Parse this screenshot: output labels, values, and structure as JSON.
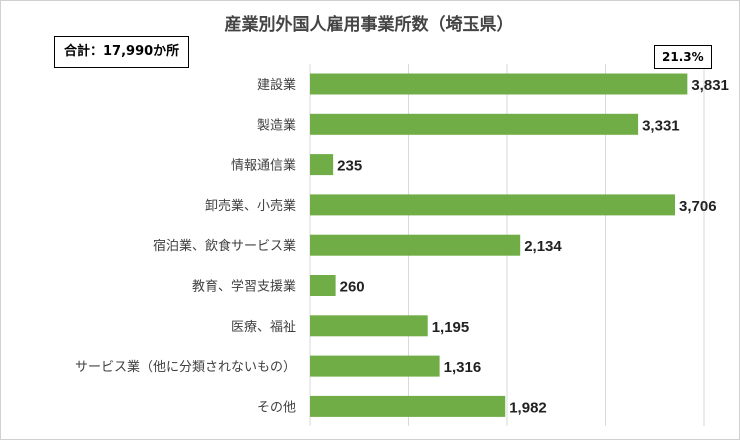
{
  "chart_data": {
    "type": "bar",
    "orientation": "horizontal",
    "title": "産業別外国人雇用事業所数（埼玉県）",
    "total_label": "合計：17,990か所",
    "highlight_label": "21.3%",
    "categories": [
      "建設業",
      "製造業",
      "情報通信業",
      "卸売業、小売業",
      "宿泊業、飲食サービス業",
      "教育、学習支援業",
      "医療、福祉",
      "サービス業（他に分類されないもの）",
      "その他"
    ],
    "values": [
      3831,
      3331,
      235,
      3706,
      2134,
      260,
      1195,
      1316,
      1982
    ],
    "value_labels": [
      "3,831",
      "3,331",
      "235",
      "3,706",
      "2,134",
      "260",
      "1,195",
      "1,316",
      "1,982"
    ],
    "xlim": [
      0,
      4000
    ],
    "grid": "vertical",
    "colors": {
      "bar": "#70AD47",
      "grid": "#d9d9d9"
    }
  }
}
